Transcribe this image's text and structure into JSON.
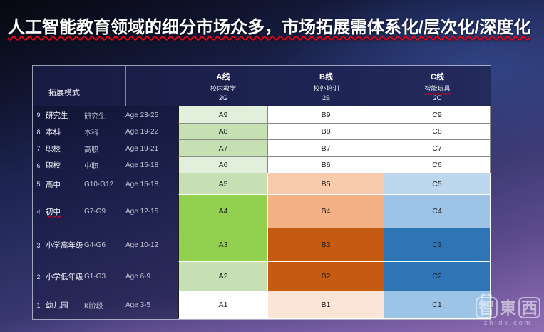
{
  "title": "人工智能教育领域的细分市场众多，市场拓展需体系化/层次化/深度化",
  "table": {
    "corner_label": "拓展模式",
    "columns": [
      {
        "line": "A线",
        "sub": "校内教学",
        "mode": "2G"
      },
      {
        "line": "B线",
        "sub": "校外培训",
        "mode": "2B"
      },
      {
        "line": "C线",
        "sub": "智能玩具",
        "mode": "2C"
      }
    ],
    "rows": [
      {
        "num": "9",
        "label": "研究生",
        "sub": "研究生",
        "age": "Age 23-25",
        "a": "A9",
        "b": "B9",
        "c": "C9",
        "colors": {
          "a": "#e2efda",
          "b": "#ffffff",
          "c": "#ffffff"
        }
      },
      {
        "num": "8",
        "label": "本科",
        "sub": "本科",
        "age": "Age 19-22",
        "a": "A8",
        "b": "B8",
        "c": "C8",
        "colors": {
          "a": "#c6e0b4",
          "b": "#ffffff",
          "c": "#ffffff"
        }
      },
      {
        "num": "7",
        "label": "职校",
        "sub": "高职",
        "age": "Age 19-21",
        "a": "A7",
        "b": "B7",
        "c": "C7",
        "colors": {
          "a": "#c6e0b4",
          "b": "#ffffff",
          "c": "#ffffff"
        }
      },
      {
        "num": "6",
        "label": "职校",
        "sub": "中职",
        "age": "Age 15-18",
        "a": "A6",
        "b": "B6",
        "c": "C6",
        "colors": {
          "a": "#e2efda",
          "b": "#ffffff",
          "c": "#ffffff"
        }
      },
      {
        "num": "5",
        "label": "高中",
        "sub": "G10-G12",
        "age": "Age 15-18",
        "a": "A5",
        "b": "B5",
        "c": "C5",
        "colors": {
          "a": "#c6e0b4",
          "b": "#f8cbad",
          "c": "#bdd7ee"
        }
      },
      {
        "num": "4",
        "label": "初中",
        "sub": "G7-G9",
        "age": "Age 12-15",
        "a": "A4",
        "b": "B4",
        "c": "C4",
        "colors": {
          "a": "#92d050",
          "b": "#f4b183",
          "c": "#9dc3e6"
        }
      },
      {
        "num": "3",
        "label": "小学高年级",
        "sub": "G4-G6",
        "age": "Age 10-12",
        "a": "A3",
        "b": "B3",
        "c": "C3",
        "colors": {
          "a": "#92d050",
          "b": "#c55a11",
          "c": "#2e75b6"
        }
      },
      {
        "num": "2",
        "label": "小学低年级",
        "sub": "G1-G3",
        "age": "Age 6-9",
        "a": "A2",
        "b": "B2",
        "c": "C2",
        "colors": {
          "a": "#c6e0b4",
          "b": "#c55a11",
          "c": "#2e75b6"
        }
      },
      {
        "num": "1",
        "label": "幼儿园",
        "sub": "K阶段",
        "age": "Age 3-5",
        "a": "A1",
        "b": "B1",
        "c": "C1",
        "colors": {
          "a": "#ffffff",
          "b": "#fce4d6",
          "c": "#9dc3e6"
        }
      }
    ]
  },
  "watermark": {
    "char1": "智",
    "char2": "東",
    "char3": "西",
    "site": "zhidx.com"
  },
  "colors": {
    "title_text": "#ffffff",
    "title_underline": "#e8001c",
    "header_bg": "#20254f",
    "grid_border_dark_rows": "#8a8a8a",
    "grid_border_light_rows": "#ffffff"
  }
}
